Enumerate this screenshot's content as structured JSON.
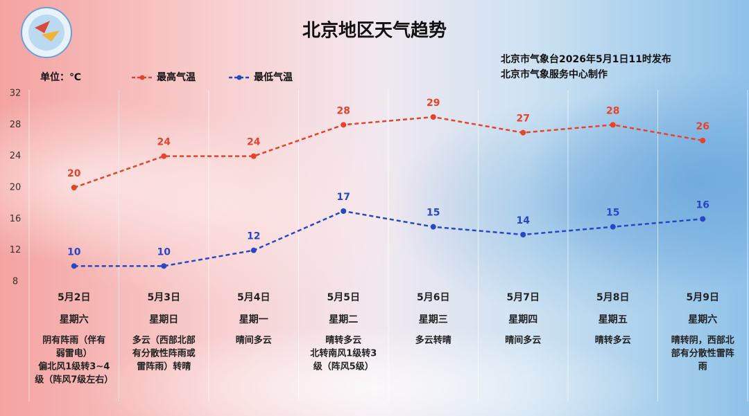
{
  "chart_data": {
    "type": "line",
    "title": "北京地区天气趋势",
    "publisher": [
      "北京市气象台2026年5月1日11时发布",
      "北京市气象服务中心制作"
    ],
    "unit_label": "单位：℃",
    "categories": [
      "5月2日",
      "5月3日",
      "5月4日",
      "5月5日",
      "5月6日",
      "5月7日",
      "5月8日",
      "5月9日"
    ],
    "weekdays": [
      "星期六",
      "星期日",
      "星期一",
      "星期二",
      "星期三",
      "星期四",
      "星期五",
      "星期六"
    ],
    "weather": [
      [
        "阴有阵雨（伴有",
        "弱雷电）",
        "偏北风1级转3~4",
        "级（阵风7级左右）"
      ],
      [
        "多云（西部北部",
        "有分散性阵雨或",
        "雷阵雨）转晴"
      ],
      [
        "晴间多云"
      ],
      [
        "晴转多云",
        "北转南风1级转3",
        "级（阵风5级）"
      ],
      [
        "多云转晴"
      ],
      [
        "晴间多云"
      ],
      [
        "晴转多云"
      ],
      [
        "晴转阴，西部北",
        "部有分散性雷阵",
        "雨"
      ]
    ],
    "series": [
      {
        "name": "最高气温",
        "color": "#e8432a",
        "values": [
          20,
          24,
          24,
          28,
          29,
          27,
          28,
          26
        ]
      },
      {
        "name": "最低气温",
        "color": "#2747c8",
        "values": [
          10,
          10,
          12,
          17,
          15,
          14,
          15,
          16
        ]
      }
    ],
    "ylim": [
      8,
      32
    ],
    "yticks": [
      8,
      12,
      16,
      20,
      24,
      28,
      32
    ],
    "line_style": "dashed"
  }
}
